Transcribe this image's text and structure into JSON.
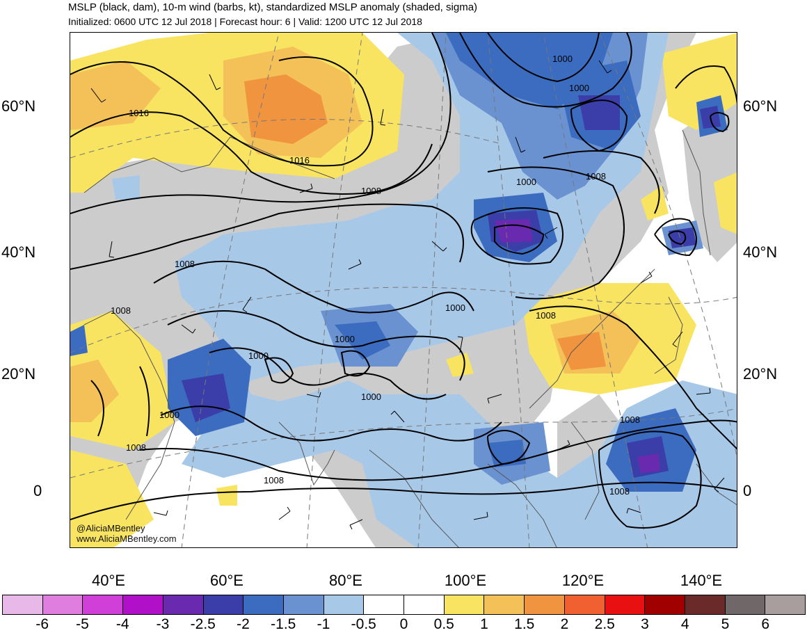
{
  "header": {
    "title": "MSLP (black, dam), 10-m wind (barbs, kt), standardized MSLP anomaly (shaded, sigma)",
    "subtitle": "Initialized: 0600 UTC 12 Jul 2018 | Forecast hour: 6 | Valid: 1200 UTC 12 Jul 2018"
  },
  "map": {
    "lat_labels": [
      "60°N",
      "40°N",
      "20°N",
      "0"
    ],
    "lon_labels": [
      "40°E",
      "60°E",
      "80°E",
      "100°E",
      "120°E",
      "140°E"
    ],
    "contour_labels": [
      "1016",
      "1016",
      "1008",
      "1000",
      "1000",
      "1008",
      "1008",
      "1008",
      "1000",
      "1008",
      "1000",
      "1000",
      "1000",
      "1000",
      "1008",
      "1000",
      "1008",
      "1008",
      "1008"
    ],
    "credits": [
      "@AliciaMBentley",
      "www.AliciaMBentley.com"
    ],
    "colors": {
      "land": "#cccccc",
      "contour": "#000000",
      "coast": "#555555"
    }
  },
  "colorbar": {
    "labels": [
      "-6",
      "-5",
      "-4",
      "-3",
      "-2.5",
      "-2",
      "-1.5",
      "-1",
      "-0.5",
      "0",
      "0.5",
      "1",
      "1.5",
      "2",
      "2.5",
      "3",
      "4",
      "5",
      "6"
    ],
    "colors": [
      "#e8b8e8",
      "#e07ee0",
      "#d040d8",
      "#b010c8",
      "#6a2ab0",
      "#3b3ea8",
      "#3b6cc0",
      "#6a92d0",
      "#a8c8e8",
      "#ffffff",
      "#ffffff",
      "#f8e460",
      "#f4c058",
      "#f09440",
      "#f06030",
      "#e81010",
      "#a00000",
      "#6a2a2a",
      "#706868",
      "#a89e9e"
    ]
  }
}
